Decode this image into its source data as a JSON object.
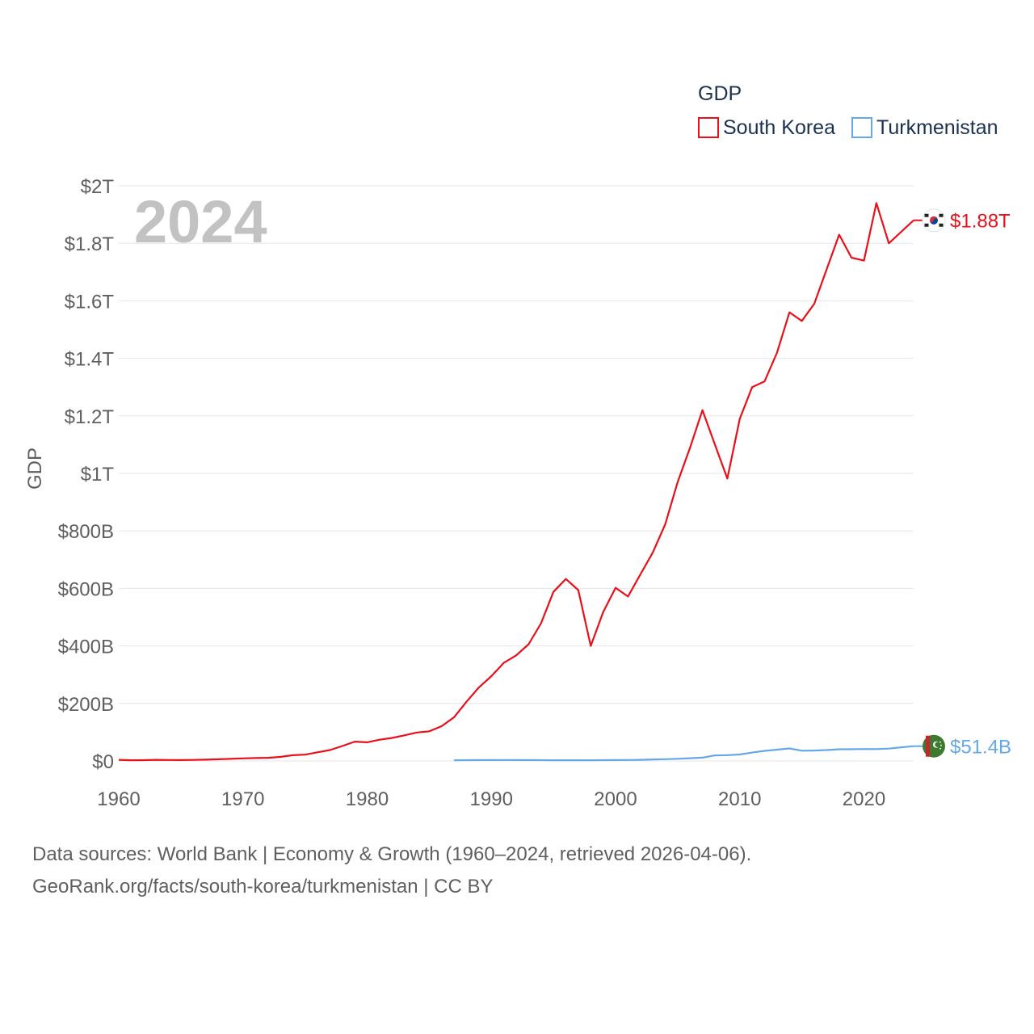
{
  "chart_data": {
    "type": "line",
    "legend_title": "GDP",
    "ylabel": "GDP",
    "year_label": "2024",
    "ylim": [
      0,
      2000000000000
    ],
    "xlim": [
      1960,
      2024
    ],
    "x_ticks": [
      1960,
      1970,
      1980,
      1990,
      2000,
      2010,
      2020
    ],
    "y_ticks": [
      {
        "value": 0,
        "label": "$0"
      },
      {
        "value": 200000000000,
        "label": "$200B"
      },
      {
        "value": 400000000000,
        "label": "$400B"
      },
      {
        "value": 600000000000,
        "label": "$600B"
      },
      {
        "value": 800000000000,
        "label": "$800B"
      },
      {
        "value": 1000000000000,
        "label": "$1T"
      },
      {
        "value": 1200000000000,
        "label": "$1.2T"
      },
      {
        "value": 1400000000000,
        "label": "$1.4T"
      },
      {
        "value": 1600000000000,
        "label": "$1.6T"
      },
      {
        "value": 1800000000000,
        "label": "$1.8T"
      },
      {
        "value": 2000000000000,
        "label": "$2T"
      }
    ],
    "series": [
      {
        "name": "South Korea",
        "color": "#e8101a",
        "end_label": "$1.88T",
        "flag_icon": "south-korea-flag-icon",
        "units": "billions USD",
        "x": [
          1960,
          1961,
          1962,
          1963,
          1964,
          1965,
          1966,
          1967,
          1968,
          1969,
          1970,
          1971,
          1972,
          1973,
          1974,
          1975,
          1976,
          1977,
          1978,
          1979,
          1980,
          1981,
          1982,
          1983,
          1984,
          1985,
          1986,
          1987,
          1988,
          1989,
          1990,
          1991,
          1992,
          1993,
          1994,
          1995,
          1996,
          1997,
          1998,
          1999,
          2000,
          2001,
          2002,
          2003,
          2004,
          2005,
          2006,
          2007,
          2008,
          2009,
          2010,
          2011,
          2012,
          2013,
          2014,
          2015,
          2016,
          2017,
          2018,
          2019,
          2020,
          2021,
          2022,
          2023,
          2024
        ],
        "values": [
          4,
          2.4,
          2.8,
          3.9,
          3.4,
          3.1,
          3.7,
          4.6,
          5.8,
          7.3,
          9,
          10,
          11,
          14,
          20,
          22,
          30,
          38,
          52,
          67,
          65,
          74,
          80,
          89,
          99,
          103,
          121,
          152,
          206,
          256,
          295,
          341,
          367,
          406,
          479,
          588,
          633,
          594,
          400,
          517,
          602,
          572,
          649,
          725,
          823,
          970,
          1090,
          1220,
          1100,
          982,
          1190,
          1300,
          1320,
          1420,
          1560,
          1530,
          1590,
          1710,
          1830,
          1750,
          1740,
          1940,
          1800,
          1840,
          1880
        ]
      },
      {
        "name": "Turkmenistan",
        "color": "#65a8e8",
        "end_label": "$51.4B",
        "flag_icon": "turkmenistan-flag-icon",
        "units": "billions USD",
        "x": [
          1987,
          1988,
          1989,
          1990,
          1991,
          1992,
          1993,
          1994,
          1995,
          1996,
          1997,
          1998,
          1999,
          2000,
          2001,
          2002,
          2003,
          2004,
          2005,
          2006,
          2007,
          2008,
          2009,
          2010,
          2011,
          2012,
          2013,
          2014,
          2015,
          2016,
          2017,
          2018,
          2019,
          2020,
          2021,
          2022,
          2023,
          2024
        ],
        "values": [
          2.6,
          2.9,
          3,
          3.2,
          3.3,
          3.2,
          3.2,
          2.8,
          2.5,
          2.4,
          2.4,
          2.6,
          2.9,
          3.2,
          3.5,
          4,
          5.2,
          6.3,
          7.5,
          9.6,
          11.6,
          19.3,
          20.2,
          22.6,
          29.2,
          35.2,
          39.2,
          43.5,
          35.8,
          36.2,
          37.9,
          40.8,
          40.8,
          41.5,
          41.2,
          43.1,
          47.4,
          51.4
        ]
      }
    ]
  },
  "footer": {
    "sources": "Data sources: World Bank | Economy & Growth (1960–2024, retrieved 2026-04-06).",
    "attribution": "GeoRank.org/facts/south-korea/turkmenistan | CC BY"
  }
}
